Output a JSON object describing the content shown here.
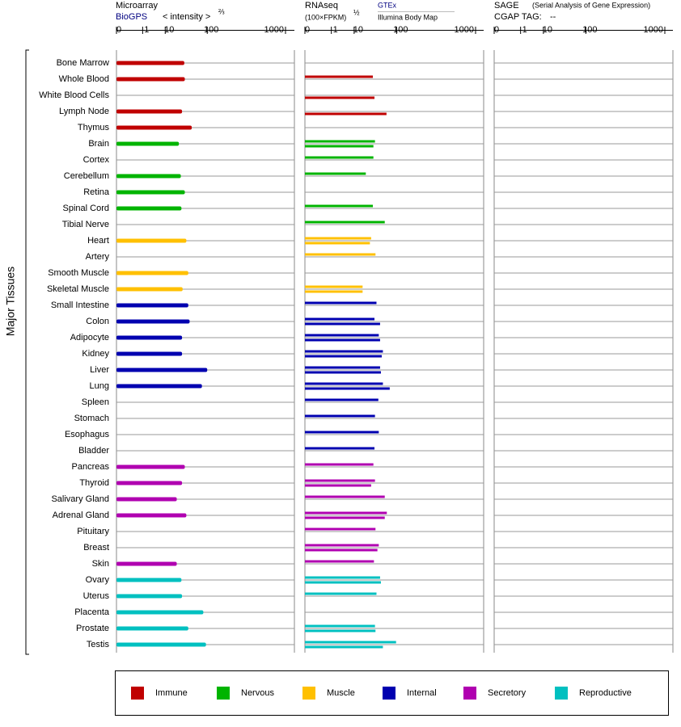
{
  "chart_data": {
    "type": "bar",
    "axis_label": "Major Tissues",
    "categories": [
      "Bone Marrow",
      "Whole Blood",
      "White Blood Cells",
      "Lymph Node",
      "Thymus",
      "Brain",
      "Cortex",
      "Cerebellum",
      "Retina",
      "Spinal Cord",
      "Tibial Nerve",
      "Heart",
      "Artery",
      "Smooth Muscle",
      "Skeletal Muscle",
      "Small Intestine",
      "Colon",
      "Adipocyte",
      "Kidney",
      "Liver",
      "Lung",
      "Spleen",
      "Stomach",
      "Esophagus",
      "Bladder",
      "Pancreas",
      "Thyroid",
      "Salivary Gland",
      "Adrenal Gland",
      "Pituitary",
      "Breast",
      "Skin",
      "Ovary",
      "Uterus",
      "Placenta",
      "Prostate",
      "Testis"
    ],
    "colors": [
      "#c00000",
      "#c00000",
      "#c00000",
      "#c00000",
      "#c00000",
      "#00b400",
      "#00b400",
      "#00b400",
      "#00b400",
      "#00b400",
      "#00b400",
      "#ffc000",
      "#ffc000",
      "#ffc000",
      "#ffc000",
      "#0000b0",
      "#0000b0",
      "#0000b0",
      "#0000b0",
      "#0000b0",
      "#0000b0",
      "#0000b0",
      "#0000b0",
      "#0000b0",
      "#0000b0",
      "#b000b0",
      "#b000b0",
      "#b000b0",
      "#b000b0",
      "#b000b0",
      "#b000b0",
      "#b000b0",
      "#00c0c0",
      "#00c0c0",
      "#00c0c0",
      "#00c0c0",
      "#00c0c0"
    ],
    "legend": [
      {
        "name": "Immune",
        "color": "#c00000"
      },
      {
        "name": "Nervous",
        "color": "#00b400"
      },
      {
        "name": "Muscle",
        "color": "#ffc000"
      },
      {
        "name": "Internal",
        "color": "#0000b0"
      },
      {
        "name": "Secretory",
        "color": "#b000b0"
      },
      {
        "name": "Reproductive",
        "color": "#00c0c0"
      }
    ],
    "panels": [
      {
        "title": "Microarray",
        "unit": "< intensity >",
        "unit_power": "⅔",
        "xlim": [
          0,
          1000
        ],
        "xticks": [
          0,
          1,
          10,
          100,
          1000
        ],
        "series": [
          {
            "name": "BioGPS",
            "values": [
              34,
              35,
              null,
              30,
              50,
              25,
              null,
              28,
              35,
              29,
              null,
              38,
              null,
              42,
              31,
              42,
              45,
              30,
              30,
              100,
              80,
              null,
              null,
              null,
              null,
              35,
              30,
              22,
              38,
              null,
              null,
              22,
              29,
              30,
              85,
              42,
              95
            ]
          }
        ]
      },
      {
        "title": "RNAseq",
        "unit": "(100×FPKM)",
        "unit_power": "½",
        "xlim": [
          0,
          1000
        ],
        "xticks": [
          0,
          1,
          10,
          100,
          1000
        ],
        "series": [
          {
            "name": "GTEx",
            "values": [
              null,
              33,
              null,
              null,
              null,
              37,
              34,
              22,
              null,
              33,
              60,
              30,
              38,
              null,
              18,
              40,
              36,
              45,
              55,
              48,
              55,
              44,
              37,
              45,
              36,
              34,
              37,
              60,
              66,
              38,
              45,
              35,
              48,
              40,
              null,
              37,
              98
            ]
          },
          {
            "name": "Illumina Body Map",
            "values": [
              null,
              null,
              36,
              65,
              null,
              34,
              null,
              null,
              null,
              null,
              null,
              28,
              null,
              null,
              18,
              null,
              48,
              48,
              52,
              50,
              75,
              null,
              null,
              null,
              null,
              null,
              30,
              null,
              60,
              null,
              42,
              null,
              50,
              null,
              null,
              38,
              55
            ]
          }
        ]
      },
      {
        "title": "SAGE",
        "subtitle": "(Serial Analysis of Gene Expression)",
        "tag_label": "CGAP TAG:",
        "tag": "--",
        "xlim": [
          0,
          1000
        ],
        "xticks": [
          0,
          1,
          10,
          100,
          1000
        ]
      }
    ]
  }
}
